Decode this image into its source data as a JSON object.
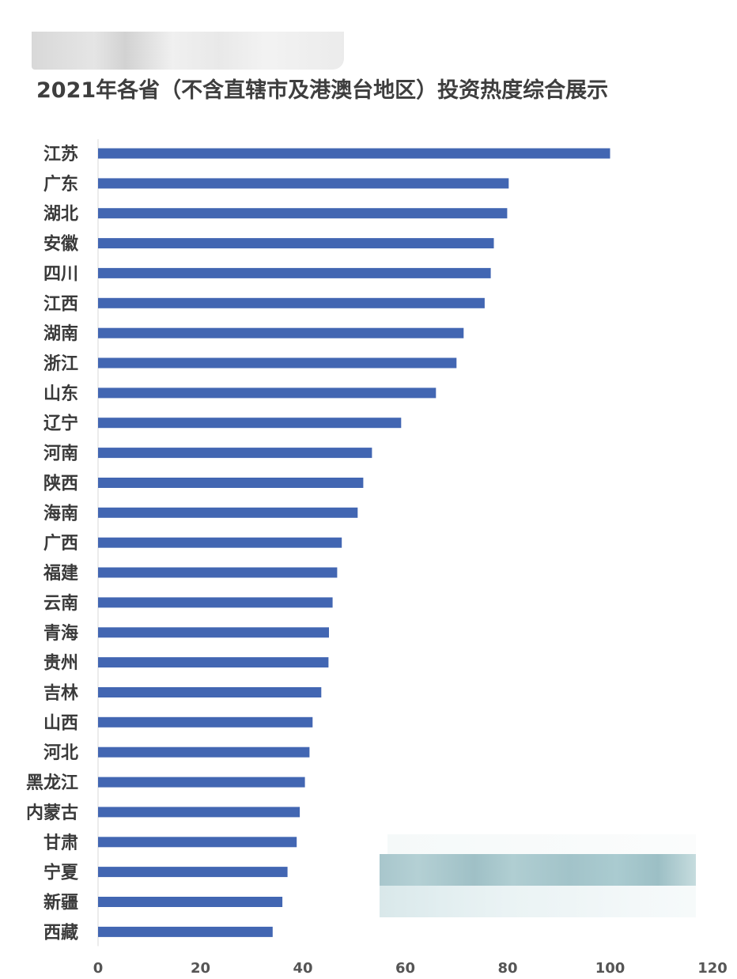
{
  "title": "2021年各省（不含直辖市及港澳台地区）投资热度综合展示",
  "chart_data": {
    "type": "bar",
    "orientation": "horizontal",
    "title": "2021年各省（不含直辖市及港澳台地区）投资热度综合展示",
    "categories": [
      "江苏",
      "广东",
      "湖北",
      "安徽",
      "四川",
      "江西",
      "湖南",
      "浙江",
      "山东",
      "辽宁",
      "河南",
      "陕西",
      "海南",
      "广西",
      "福建",
      "云南",
      "青海",
      "贵州",
      "吉林",
      "山西",
      "河北",
      "黑龙江",
      "内蒙古",
      "甘肃",
      "宁夏",
      "新疆",
      "西藏"
    ],
    "values": [
      100,
      80.2,
      79.9,
      77.3,
      76.7,
      75.5,
      71.4,
      70.0,
      66.0,
      59.2,
      53.5,
      51.8,
      50.7,
      47.6,
      46.7,
      45.8,
      45.1,
      45.0,
      43.6,
      41.9,
      41.3,
      40.4,
      39.4,
      38.8,
      37.0,
      36.0,
      34.1
    ],
    "xlim": [
      0,
      120
    ],
    "xticks": [
      "0",
      "20",
      "40",
      "60",
      "80",
      "100",
      "120"
    ],
    "color": "#4266b2",
    "grid": false,
    "legend": "none"
  }
}
